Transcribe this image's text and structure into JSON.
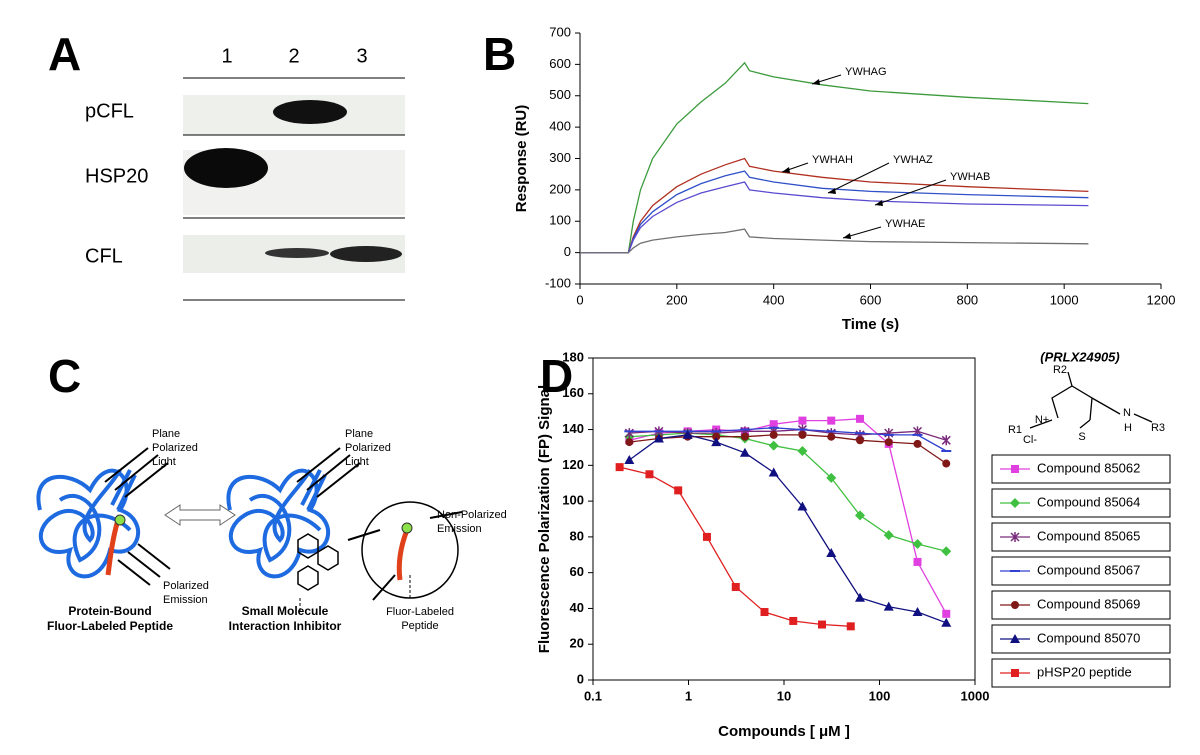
{
  "panel_a": {
    "label": "A",
    "lanes": [
      "1",
      "2",
      "3"
    ],
    "rows": [
      "pCFL",
      "HSP20",
      "CFL"
    ]
  },
  "chart_data": [
    {
      "type": "line",
      "panel": "B",
      "ylabel": "Response (RU)",
      "xlabel": "Time (s)",
      "x": [
        0,
        100,
        110,
        125,
        150,
        200,
        250,
        300,
        340,
        350,
        400,
        500,
        600,
        800,
        1050
      ],
      "xlim": [
        0,
        1200
      ],
      "xticks": [
        0,
        200,
        400,
        600,
        800,
        1000,
        1200
      ],
      "ylim": [
        -100,
        700
      ],
      "yticks": [
        -100,
        0,
        100,
        200,
        300,
        400,
        500,
        600,
        700
      ],
      "series": [
        {
          "name": "YWHAG",
          "color": "#3c9a3c",
          "values": [
            0,
            0,
            100,
            200,
            300,
            410,
            480,
            540,
            605,
            580,
            560,
            535,
            515,
            495,
            475
          ]
        },
        {
          "name": "YWHAH",
          "color": "#b03020",
          "values": [
            0,
            0,
            50,
            100,
            150,
            210,
            250,
            280,
            300,
            275,
            260,
            240,
            225,
            210,
            195
          ]
        },
        {
          "name": "YWHAZ",
          "color": "#3050c8",
          "values": [
            0,
            0,
            45,
            90,
            130,
            185,
            220,
            245,
            260,
            240,
            225,
            205,
            195,
            185,
            175
          ]
        },
        {
          "name": "YWHAB",
          "color": "#5a4ad0",
          "values": [
            0,
            0,
            40,
            80,
            115,
            160,
            190,
            210,
            225,
            200,
            190,
            175,
            165,
            155,
            150
          ]
        },
        {
          "name": "YWHAE",
          "color": "#707070",
          "values": [
            0,
            0,
            15,
            30,
            40,
            50,
            58,
            64,
            75,
            50,
            45,
            40,
            35,
            32,
            28
          ]
        }
      ]
    },
    {
      "type": "scatter-line",
      "panel": "D",
      "ylabel": "Fluorescence Polarization (FP) Signal",
      "xlabel": "Compounds [ μM ]",
      "xlog": true,
      "xlim": [
        0.1,
        1000
      ],
      "xticks": [
        0.1,
        1,
        10,
        100,
        1000
      ],
      "ylim": [
        0,
        180
      ],
      "yticks": [
        0,
        20,
        40,
        60,
        80,
        100,
        120,
        140,
        160,
        180
      ],
      "series": [
        {
          "name": "Compound 85062",
          "color": "#e040e0",
          "marker": "square",
          "x": [
            0.24,
            0.49,
            0.98,
            1.95,
            3.9,
            7.8,
            15.6,
            31.25,
            62.5,
            125,
            250,
            500
          ],
          "values": [
            134,
            138,
            139,
            140,
            139,
            143,
            145,
            145,
            146,
            132,
            66,
            37
          ]
        },
        {
          "name": "Compound 85064",
          "color": "#40c040",
          "marker": "diamond",
          "x": [
            0.24,
            0.49,
            0.98,
            1.95,
            3.9,
            7.8,
            15.6,
            31.25,
            62.5,
            125,
            250,
            500
          ],
          "values": [
            136,
            137,
            138,
            137,
            135,
            131,
            128,
            113,
            92,
            81,
            76,
            72
          ]
        },
        {
          "name": "Compound 85065",
          "color": "#7a2a7a",
          "marker": "star",
          "x": [
            0.24,
            0.49,
            0.98,
            1.95,
            3.9,
            7.8,
            15.6,
            31.25,
            62.5,
            125,
            250,
            500
          ],
          "values": [
            138,
            139,
            138,
            138,
            139,
            139,
            140,
            138,
            137,
            138,
            139,
            134
          ]
        },
        {
          "name": "Compound 85067",
          "color": "#3040d0",
          "marker": "dash",
          "x": [
            0.24,
            0.49,
            0.98,
            1.95,
            3.9,
            7.8,
            15.6,
            31.25,
            62.5,
            125,
            250,
            500
          ],
          "values": [
            139,
            139,
            139,
            139,
            140,
            141,
            140,
            139,
            138,
            137,
            137,
            128
          ]
        },
        {
          "name": "Compound 85069",
          "color": "#801818",
          "marker": "circle",
          "x": [
            0.24,
            0.49,
            0.98,
            1.95,
            3.9,
            7.8,
            15.6,
            31.25,
            62.5,
            125,
            250,
            500
          ],
          "values": [
            133,
            135,
            136,
            136,
            136,
            137,
            137,
            136,
            134,
            133,
            132,
            121
          ]
        },
        {
          "name": "Compound 85070",
          "color": "#101080",
          "marker": "triangle",
          "x": [
            0.24,
            0.49,
            0.98,
            1.95,
            3.9,
            7.8,
            15.6,
            31.25,
            62.5,
            125,
            250,
            500
          ],
          "values": [
            123,
            135,
            137,
            133,
            127,
            116,
            97,
            71,
            46,
            41,
            38,
            32
          ]
        },
        {
          "name": "pHSP20 peptide",
          "color": "#e02020",
          "marker": "square",
          "x": [
            0.19,
            0.39,
            0.78,
            1.56,
            3.125,
            6.25,
            12.5,
            25,
            50
          ],
          "values": [
            119,
            115,
            106,
            80,
            52,
            38,
            33,
            31,
            30
          ]
        }
      ]
    }
  ],
  "panel_c": {
    "label": "C",
    "light_left": [
      "Plane",
      "Polarized",
      "Light"
    ],
    "emission_left": [
      "Polarized",
      "Emission"
    ],
    "caption_left": [
      "Protein-Bound",
      "Fluor-Labeled Peptide"
    ],
    "light_right": [
      "Plane",
      "Polarized",
      "Light"
    ],
    "caption_right": [
      "Small Molecule",
      "Interaction Inhibitor"
    ],
    "emission_right": [
      "Non-Polarized",
      "Emission"
    ],
    "peptide": [
      "Fluor-Labeled",
      "Peptide"
    ]
  },
  "structure": {
    "name": "(PRLX24905)",
    "r2": "R2",
    "r1": "R1",
    "n_plus": "N+",
    "cl": "Cl-",
    "s": "S",
    "n": "N",
    "h": "H",
    "r3": "R3"
  }
}
